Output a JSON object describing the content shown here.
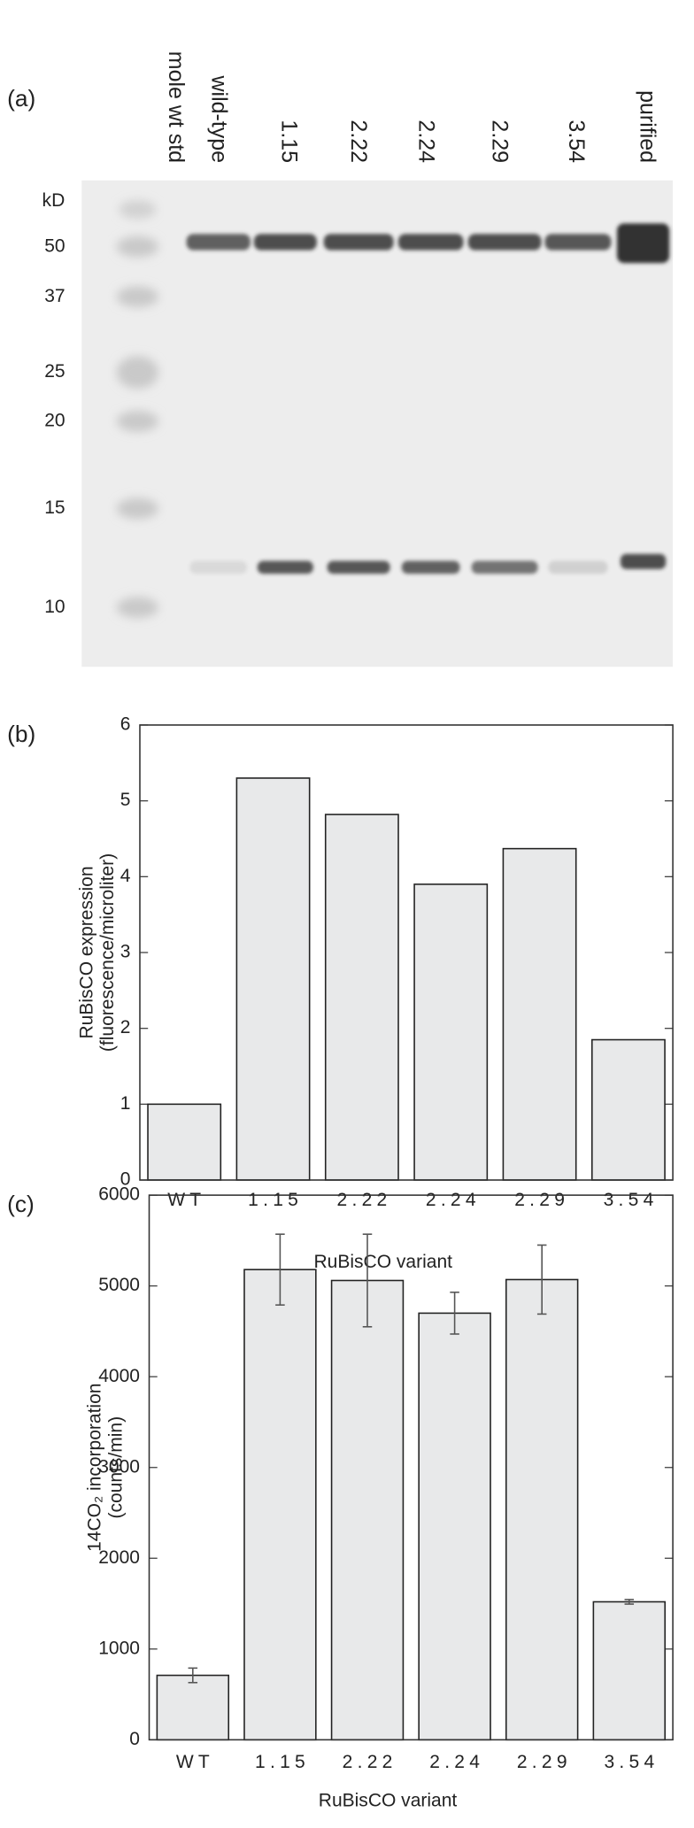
{
  "gel": {
    "panel_label": "(a)",
    "lanes": [
      "mole wt std",
      "wild-type",
      "1.15",
      "2.22",
      "2.24",
      "2.29",
      "3.54",
      "purified"
    ],
    "unit": "kD",
    "markers": [
      "50",
      "37",
      "25",
      "20",
      "15",
      "10"
    ]
  },
  "chart_data": [
    {
      "type": "bar",
      "panel_label": "(b)",
      "y_label": [
        "RuBisCO expression",
        "(fluorescence/microliter)"
      ],
      "x_label": "RuBisCO variant",
      "categories": [
        "WT",
        "1.15",
        "2.22",
        "2.24",
        "2.29",
        "3.54"
      ],
      "values": [
        1.0,
        5.3,
        4.82,
        3.9,
        4.37,
        1.85
      ],
      "color": "#e8e9ea",
      "ylim": [
        0,
        6
      ],
      "yticks": [
        0,
        1,
        2,
        3,
        4,
        5,
        6
      ]
    },
    {
      "type": "bar",
      "panel_label": "(c)",
      "y_label": [
        "14CO₂ incorporation",
        "(counts/min)"
      ],
      "x_label": "RuBisCO variant",
      "categories": [
        "WT",
        "1.15",
        "2.22",
        "2.24",
        "2.29",
        "3.54"
      ],
      "values": [
        710,
        5180,
        5060,
        4700,
        5070,
        1520
      ],
      "errors": [
        80,
        390,
        510,
        230,
        380,
        25
      ],
      "color": "#e8e9ea",
      "ylim": [
        0,
        6000
      ],
      "yticks": [
        0,
        1000,
        2000,
        3000,
        4000,
        5000,
        6000
      ]
    }
  ]
}
